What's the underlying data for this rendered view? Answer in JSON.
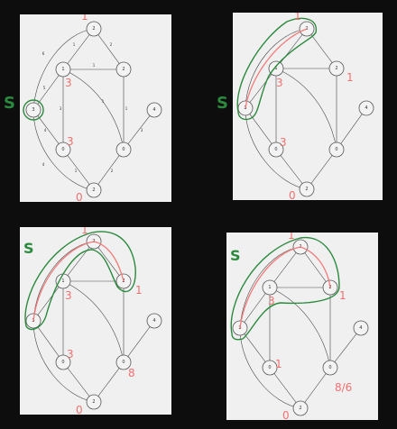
{
  "panels": [
    {
      "id": "p1",
      "annotations": {
        "green": [
          "S"
        ],
        "red": [
          "1",
          "3",
          "3",
          "0"
        ]
      }
    },
    {
      "id": "p2",
      "annotations": {
        "green": [
          "S"
        ],
        "red": [
          "1",
          "1",
          "3",
          "3",
          "0"
        ]
      }
    },
    {
      "id": "p3",
      "annotations": {
        "green": [
          "S"
        ],
        "red": [
          "1",
          "1",
          "3",
          "3",
          "8",
          "0"
        ]
      }
    },
    {
      "id": "p4",
      "annotations": {
        "green": [
          "S"
        ],
        "red": [
          "1",
          "1",
          "1",
          "3",
          "8/6",
          "0"
        ]
      }
    }
  ],
  "graph": {
    "nodes": [
      "2",
      "1",
      "2",
      "4",
      "3",
      "0",
      "0",
      "2"
    ],
    "edge_weights": [
      "1",
      "2",
      "1",
      "5",
      "3",
      "1",
      "4",
      "1",
      "2",
      "3",
      "6",
      "4",
      "1",
      "2",
      "2",
      "5",
      "5"
    ]
  },
  "colors": {
    "highlight_green": "#2b8a3e",
    "highlight_red": "#f27b7b",
    "panel_bg": "#f0f0f0",
    "page_bg": "#0d0d0d"
  }
}
